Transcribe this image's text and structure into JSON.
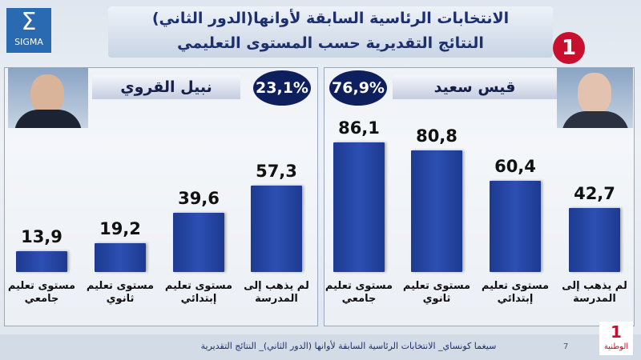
{
  "header": {
    "title": "الانتخابات الرئاسية السابقة لأوانها(الدور الثاني)",
    "subtitle": "النتائج التقديرية حسب المستوى التعليمي",
    "logo": "SIGMA",
    "channel_number": "1",
    "channel": "الوطنية"
  },
  "chart_data": [
    {
      "type": "bar",
      "candidate": "نبيل القروي",
      "share": "23,1%",
      "categories": [
        "مستوى تعليم جامعي",
        "مستوى تعليم ثانوي",
        "مستوى تعليم إبتدائي",
        "لم يذهب إلى المدرسة"
      ],
      "values": [
        13.9,
        19.2,
        39.6,
        57.3
      ],
      "value_labels": [
        "13,9",
        "19,2",
        "39,6",
        "57,3"
      ],
      "color": "#1d3a8f"
    },
    {
      "type": "bar",
      "candidate": "قيس سعيد",
      "share": "76,9%",
      "categories": [
        "مستوى تعليم جامعي",
        "مستوى تعليم ثانوي",
        "مستوى تعليم إبتدائي",
        "لم يذهب إلى المدرسة"
      ],
      "values": [
        86.1,
        80.8,
        60.4,
        42.7
      ],
      "value_labels": [
        "86,1",
        "80,8",
        "60,4",
        "42,7"
      ],
      "color": "#1d3a8f"
    }
  ],
  "footer": {
    "text": "سيغما كونساي_ الانتخابات الرئاسية السابقة لأوانها (الدور الثاني)_ النتائج التقديرية",
    "page": "7"
  }
}
